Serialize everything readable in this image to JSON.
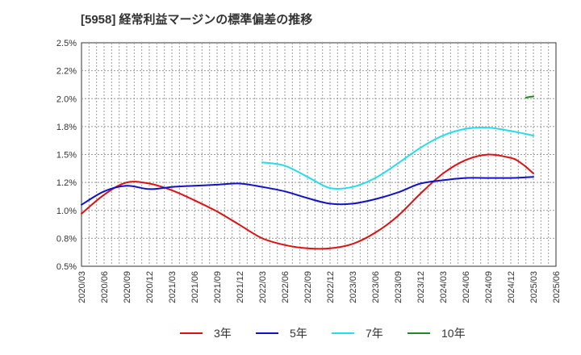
{
  "chart_data": {
    "type": "line",
    "title": "[5958]  経常利益マージンの標準偏差の推移",
    "xlabel": "",
    "ylabel": "",
    "ylim": [
      0.5,
      2.5
    ],
    "y_ticks": [
      0.5,
      0.75,
      1.0,
      1.25,
      1.5,
      1.75,
      2.0,
      2.25,
      2.5
    ],
    "y_tick_labels": [
      "0.5%",
      "0.8%",
      "1.0%",
      "1.2%",
      "1.5%",
      "1.8%",
      "2.0%",
      "2.2%",
      "2.5%"
    ],
    "x_range": [
      "2020/03",
      "2025/06"
    ],
    "x_tick_labels": [
      "2020/03",
      "2020/06",
      "2020/09",
      "2020/12",
      "2021/03",
      "2021/06",
      "2021/09",
      "2021/12",
      "2022/03",
      "2022/06",
      "2022/09",
      "2022/12",
      "2023/03",
      "2023/06",
      "2023/09",
      "2023/12",
      "2024/03",
      "2024/06",
      "2024/09",
      "2024/12",
      "2025/03",
      "2025/06"
    ],
    "grid": true,
    "legend_position": "bottom",
    "series": [
      {
        "name": "3年",
        "color": "#dd1111",
        "points": [
          [
            "2020/03",
            0.97
          ],
          [
            "2020/06",
            1.14
          ],
          [
            "2020/09",
            1.25
          ],
          [
            "2020/12",
            1.24
          ],
          [
            "2021/03",
            1.18
          ],
          [
            "2021/06",
            1.09
          ],
          [
            "2021/09",
            0.99
          ],
          [
            "2021/12",
            0.87
          ],
          [
            "2022/03",
            0.75
          ],
          [
            "2022/06",
            0.69
          ],
          [
            "2022/09",
            0.66
          ],
          [
            "2022/12",
            0.66
          ],
          [
            "2023/03",
            0.7
          ],
          [
            "2023/06",
            0.8
          ],
          [
            "2023/09",
            0.95
          ],
          [
            "2023/12",
            1.15
          ],
          [
            "2024/03",
            1.33
          ],
          [
            "2024/06",
            1.45
          ],
          [
            "2024/09",
            1.5
          ],
          [
            "2024/12",
            1.47
          ],
          [
            "2025/01",
            1.44
          ],
          [
            "2025/02",
            1.39
          ],
          [
            "2025/03",
            1.33
          ]
        ]
      },
      {
        "name": "5年",
        "color": "#1111cc",
        "points": [
          [
            "2020/03",
            1.05
          ],
          [
            "2020/06",
            1.17
          ],
          [
            "2020/09",
            1.22
          ],
          [
            "2020/12",
            1.19
          ],
          [
            "2021/03",
            1.21
          ],
          [
            "2021/06",
            1.22
          ],
          [
            "2021/09",
            1.23
          ],
          [
            "2021/12",
            1.24
          ],
          [
            "2022/03",
            1.21
          ],
          [
            "2022/06",
            1.17
          ],
          [
            "2022/09",
            1.11
          ],
          [
            "2022/12",
            1.06
          ],
          [
            "2023/03",
            1.06
          ],
          [
            "2023/06",
            1.1
          ],
          [
            "2023/09",
            1.16
          ],
          [
            "2023/12",
            1.24
          ],
          [
            "2024/03",
            1.27
          ],
          [
            "2024/06",
            1.29
          ],
          [
            "2024/09",
            1.29
          ],
          [
            "2024/12",
            1.29
          ],
          [
            "2025/03",
            1.3
          ]
        ]
      },
      {
        "name": "7年",
        "color": "#22ddee",
        "points": [
          [
            "2022/03",
            1.43
          ],
          [
            "2022/06",
            1.4
          ],
          [
            "2022/09",
            1.3
          ],
          [
            "2022/12",
            1.2
          ],
          [
            "2023/03",
            1.21
          ],
          [
            "2023/06",
            1.29
          ],
          [
            "2023/09",
            1.42
          ],
          [
            "2023/12",
            1.56
          ],
          [
            "2024/03",
            1.67
          ],
          [
            "2024/06",
            1.73
          ],
          [
            "2024/09",
            1.74
          ],
          [
            "2024/12",
            1.71
          ],
          [
            "2025/03",
            1.67
          ]
        ]
      },
      {
        "name": "10年",
        "color": "#228822",
        "points": [
          [
            "2025/02",
            2.01
          ],
          [
            "2025/03",
            2.02
          ]
        ]
      }
    ]
  }
}
